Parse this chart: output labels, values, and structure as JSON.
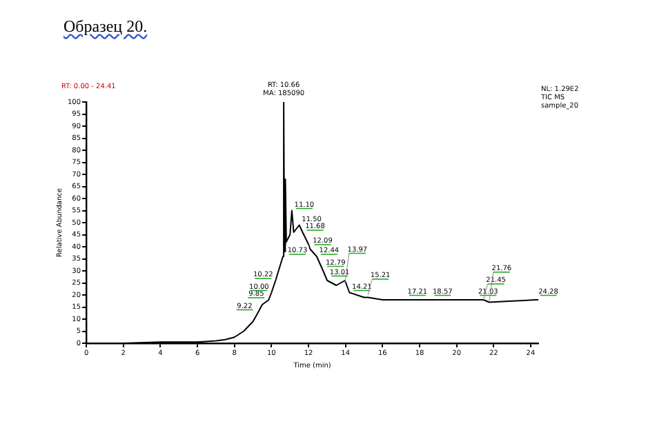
{
  "chart_data": {
    "type": "line",
    "title": "Образец 20.",
    "xlabel": "Time (min)",
    "ylabel": "Relative Abundance",
    "annotations": [
      "RT: 0.00 - 24.41",
      "NL: 1.29E2",
      "TIC MS",
      "sample_20",
      {
        "text": "RT: 10.66\nMA: 185090",
        "x": 10.66,
        "y": 100
      },
      {
        "text": "9.22",
        "x": 9.22,
        "y": 13
      },
      {
        "text": "9.85",
        "x": 9.85,
        "y": 18
      },
      {
        "text": "10.00",
        "x": 10.0,
        "y": 21
      },
      {
        "text": "10.22",
        "x": 10.22,
        "y": 26
      },
      {
        "text": "10.73",
        "x": 10.73,
        "y": 36
      },
      {
        "text": "11.10",
        "x": 11.1,
        "y": 55
      },
      {
        "text": "11.50",
        "x": 11.5,
        "y": 49
      },
      {
        "text": "11.68",
        "x": 11.68,
        "y": 46
      },
      {
        "text": "12.09",
        "x": 12.09,
        "y": 40
      },
      {
        "text": "12.44",
        "x": 12.44,
        "y": 36
      },
      {
        "text": "12.79",
        "x": 12.79,
        "y": 31
      },
      {
        "text": "13.01",
        "x": 13.01,
        "y": 27
      },
      {
        "text": "13.97",
        "x": 13.97,
        "y": 25
      },
      {
        "text": "14.21",
        "x": 14.21,
        "y": 21
      },
      {
        "text": "15.21",
        "x": 15.21,
        "y": 20
      },
      {
        "text": "17.21",
        "x": 17.21,
        "y": 19
      },
      {
        "text": "18.57",
        "x": 18.57,
        "y": 19
      },
      {
        "text": "21.03",
        "x": 21.03,
        "y": 19
      },
      {
        "text": "21.45",
        "x": 21.45,
        "y": 18
      },
      {
        "text": "21.76",
        "x": 21.76,
        "y": 17.2
      },
      {
        "text": "24.28",
        "x": 24.28,
        "y": 19
      }
    ],
    "x": [
      0,
      2,
      4,
      5,
      6,
      7,
      7.5,
      8,
      8.5,
      9,
      9.22,
      9.5,
      9.85,
      10.0,
      10.22,
      10.5,
      10.62,
      10.66,
      10.7,
      10.75,
      10.8,
      11.0,
      11.1,
      11.2,
      11.5,
      11.68,
      12.0,
      12.09,
      12.44,
      12.79,
      13.01,
      13.5,
      13.97,
      14.21,
      15,
      15.21,
      16,
      17.21,
      18.57,
      20,
      21.03,
      21.45,
      21.76,
      23,
      24.28,
      24.41
    ],
    "series": [
      {
        "color": "#000000",
        "values": [
          0,
          0,
          0.5,
          0.5,
          0.5,
          1,
          1.5,
          2.5,
          5,
          9,
          12,
          16,
          18,
          21,
          26,
          33,
          36,
          100,
          38,
          68,
          42,
          45,
          55,
          46,
          49,
          46,
          41,
          39,
          36,
          30,
          26,
          24,
          26,
          21,
          19,
          19,
          18,
          18,
          18,
          18,
          18,
          18,
          17,
          17.5,
          18,
          18
        ]
      }
    ],
    "xlim": [
      0,
      24.41
    ],
    "xticks": [
      0,
      2,
      4,
      6,
      8,
      10,
      12,
      14,
      16,
      18,
      20,
      22,
      24
    ],
    "ylim": [
      0,
      100
    ],
    "yticks": [
      0,
      5,
      10,
      15,
      20,
      25,
      30,
      35,
      40,
      45,
      50,
      55,
      60,
      65,
      70,
      75,
      80,
      85,
      90,
      95,
      100
    ],
    "grid": false,
    "legend": false,
    "marker": "none",
    "line_style": "solid"
  }
}
